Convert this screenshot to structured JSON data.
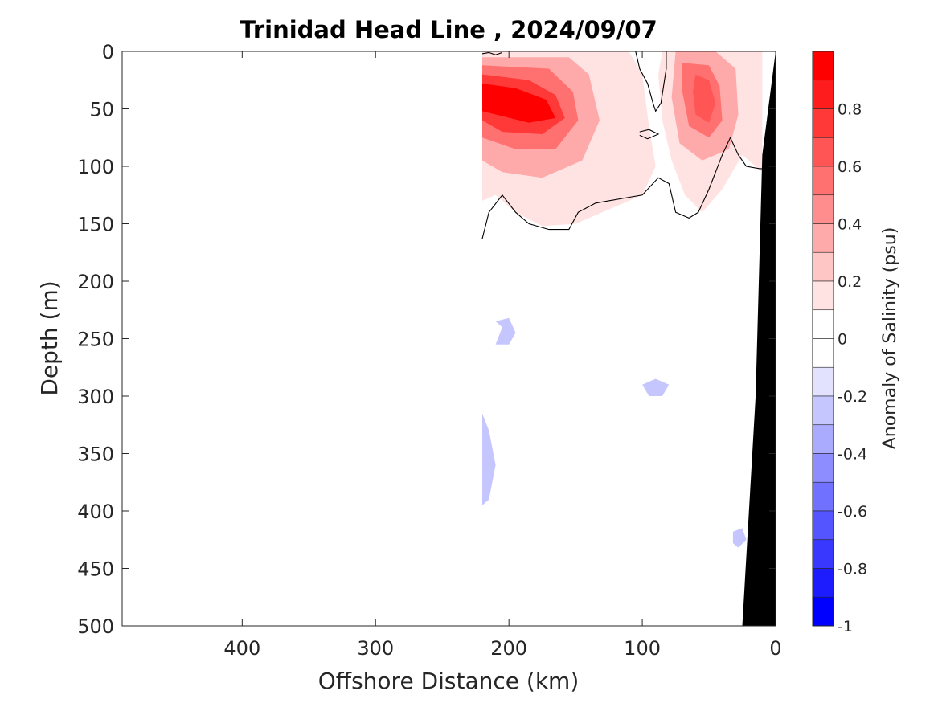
{
  "chart_data": {
    "type": "contour",
    "title": "Trinidad Head Line , 2024/09/07",
    "xlabel": "Offshore Distance (km)",
    "ylabel": "Depth (m)",
    "colorbar_label": "Anomaly of Salinity (psu)",
    "xlim": [
      490,
      0
    ],
    "ylim": [
      500,
      0
    ],
    "x_reversed": true,
    "y_reversed": true,
    "x_ticks": [
      400,
      300,
      200,
      100,
      0
    ],
    "x_tick_labels": [
      "400",
      "300",
      "200",
      "100",
      "0"
    ],
    "y_ticks": [
      0,
      50,
      100,
      150,
      200,
      250,
      300,
      350,
      400,
      450,
      500
    ],
    "y_tick_labels": [
      "0",
      "50",
      "100",
      "150",
      "200",
      "250",
      "300",
      "350",
      "400",
      "450",
      "500"
    ],
    "colorbar": {
      "range": [
        -1,
        1
      ],
      "ticks": [
        -1,
        -0.8,
        -0.6,
        -0.4,
        -0.2,
        0,
        0.2,
        0.4,
        0.6,
        0.8
      ],
      "tick_labels": [
        "-1",
        "-0.8",
        "-0.6",
        "-0.4",
        "-0.2",
        "0",
        "0.2",
        "0.4",
        "0.6",
        "0.8"
      ],
      "levels": [
        {
          "min": 0.9,
          "max": 1.0,
          "color": "#ff0000"
        },
        {
          "min": 0.8,
          "max": 0.9,
          "color": "#ff1c1c"
        },
        {
          "min": 0.7,
          "max": 0.8,
          "color": "#ff3838"
        },
        {
          "min": 0.6,
          "max": 0.7,
          "color": "#ff5555"
        },
        {
          "min": 0.5,
          "max": 0.6,
          "color": "#ff7171"
        },
        {
          "min": 0.4,
          "max": 0.5,
          "color": "#ff8d8d"
        },
        {
          "min": 0.3,
          "max": 0.4,
          "color": "#ffaaaa"
        },
        {
          "min": 0.2,
          "max": 0.3,
          "color": "#ffc6c6"
        },
        {
          "min": 0.1,
          "max": 0.2,
          "color": "#ffe2e2"
        },
        {
          "min": 0.0,
          "max": 0.1,
          "color": "#ffffff"
        },
        {
          "min": -0.1,
          "max": 0.0,
          "color": "#ffffff"
        },
        {
          "min": -0.2,
          "max": -0.1,
          "color": "#e2e2ff"
        },
        {
          "min": -0.3,
          "max": -0.2,
          "color": "#c6c6ff"
        },
        {
          "min": -0.4,
          "max": -0.3,
          "color": "#aaaaff"
        },
        {
          "min": -0.5,
          "max": -0.4,
          "color": "#8d8dff"
        },
        {
          "min": -0.6,
          "max": -0.5,
          "color": "#7171ff"
        },
        {
          "min": -0.7,
          "max": -0.6,
          "color": "#5555ff"
        },
        {
          "min": -0.8,
          "max": -0.7,
          "color": "#3838ff"
        },
        {
          "min": -0.9,
          "max": -0.8,
          "color": "#1c1cff"
        },
        {
          "min": -1.0,
          "max": -0.9,
          "color": "#0000ff"
        }
      ]
    },
    "data_extent_km": [
      220,
      0
    ],
    "regions": [
      {
        "name": "negative-anomaly-background",
        "level": -0.1,
        "points": [
          [
            220,
            145
          ],
          [
            190,
            130
          ],
          [
            160,
            135
          ],
          [
            120,
            130
          ],
          [
            80,
            115
          ],
          [
            50,
            140
          ],
          [
            30,
            125
          ],
          [
            10,
            118
          ],
          [
            10,
            500
          ],
          [
            220,
            500
          ]
        ]
      },
      {
        "name": "near-zero-deep-column",
        "level": 0,
        "points": [
          [
            160,
            255
          ],
          [
            150,
            258
          ],
          [
            148,
            300
          ],
          [
            150,
            360
          ],
          [
            148,
            420
          ],
          [
            150,
            460
          ],
          [
            155,
            485
          ],
          [
            175,
            490
          ],
          [
            185,
            480
          ],
          [
            190,
            430
          ],
          [
            188,
            360
          ],
          [
            185,
            310
          ],
          [
            170,
            265
          ]
        ]
      },
      {
        "name": "positive-anomaly-upper-west",
        "level": 0.1,
        "points": [
          [
            220,
            0
          ],
          [
            110,
            0
          ],
          [
            100,
            20
          ],
          [
            95,
            65
          ],
          [
            90,
            100
          ],
          [
            100,
            125
          ],
          [
            120,
            135
          ],
          [
            150,
            150
          ],
          [
            175,
            152
          ],
          [
            195,
            140
          ],
          [
            210,
            125
          ],
          [
            220,
            130
          ]
        ]
      },
      {
        "name": "positive-anomaly-upper-east",
        "level": 0.1,
        "points": [
          [
            85,
            0
          ],
          [
            10,
            0
          ],
          [
            10,
            105
          ],
          [
            25,
            90
          ],
          [
            40,
            120
          ],
          [
            55,
            140
          ],
          [
            68,
            125
          ],
          [
            78,
            95
          ],
          [
            85,
            60
          ],
          [
            88,
            20
          ]
        ]
      },
      {
        "name": "salty-core-west-1",
        "level": 0.3,
        "points": [
          [
            220,
            5
          ],
          [
            155,
            5
          ],
          [
            140,
            20
          ],
          [
            132,
            60
          ],
          [
            145,
            95
          ],
          [
            175,
            110
          ],
          [
            205,
            105
          ],
          [
            220,
            95
          ]
        ]
      },
      {
        "name": "salty-core-west-2",
        "level": 0.5,
        "points": [
          [
            220,
            12
          ],
          [
            170,
            15
          ],
          [
            152,
            35
          ],
          [
            148,
            60
          ],
          [
            165,
            85
          ],
          [
            195,
            85
          ],
          [
            220,
            75
          ]
        ]
      },
      {
        "name": "salty-core-west-3",
        "level": 0.7,
        "points": [
          [
            220,
            20
          ],
          [
            185,
            25
          ],
          [
            165,
            38
          ],
          [
            158,
            58
          ],
          [
            175,
            72
          ],
          [
            205,
            70
          ],
          [
            220,
            60
          ]
        ]
      },
      {
        "name": "salty-core-west-4",
        "level": 0.9,
        "points": [
          [
            220,
            28
          ],
          [
            195,
            32
          ],
          [
            172,
            42
          ],
          [
            165,
            58
          ],
          [
            185,
            62
          ],
          [
            220,
            52
          ]
        ]
      },
      {
        "name": "salty-core-east-1",
        "level": 0.3,
        "points": [
          [
            75,
            0
          ],
          [
            45,
            0
          ],
          [
            30,
            15
          ],
          [
            28,
            55
          ],
          [
            35,
            85
          ],
          [
            55,
            95
          ],
          [
            72,
            80
          ],
          [
            78,
            40
          ]
        ]
      },
      {
        "name": "salty-core-east-2",
        "level": 0.5,
        "points": [
          [
            70,
            10
          ],
          [
            50,
            12
          ],
          [
            42,
            30
          ],
          [
            40,
            60
          ],
          [
            50,
            75
          ],
          [
            65,
            65
          ],
          [
            70,
            35
          ]
        ]
      },
      {
        "name": "salty-core-east-3",
        "level": 0.6,
        "points": [
          [
            60,
            20
          ],
          [
            50,
            25
          ],
          [
            45,
            45
          ],
          [
            50,
            62
          ],
          [
            60,
            55
          ],
          [
            62,
            35
          ]
        ]
      },
      {
        "name": "fresh-patch-1",
        "level": -0.3,
        "points": [
          [
            210,
            235
          ],
          [
            205,
            240
          ],
          [
            210,
            255
          ],
          [
            200,
            255
          ],
          [
            195,
            245
          ],
          [
            200,
            232
          ]
        ]
      },
      {
        "name": "fresh-patch-2",
        "level": -0.3,
        "points": [
          [
            220,
            315
          ],
          [
            215,
            330
          ],
          [
            210,
            360
          ],
          [
            215,
            390
          ],
          [
            220,
            395
          ]
        ]
      },
      {
        "name": "fresh-patch-3",
        "level": -0.3,
        "points": [
          [
            100,
            290
          ],
          [
            90,
            285
          ],
          [
            80,
            290
          ],
          [
            85,
            300
          ],
          [
            95,
            300
          ]
        ]
      },
      {
        "name": "fresh-patch-4",
        "level": -0.3,
        "points": [
          [
            32,
            418
          ],
          [
            25,
            415
          ],
          [
            22,
            425
          ],
          [
            28,
            432
          ],
          [
            32,
            428
          ]
        ]
      }
    ],
    "zero_contour_lines": [
      {
        "name": "zero-contour-main",
        "points": [
          [
            220,
            163
          ],
          [
            215,
            140
          ],
          [
            205,
            125
          ],
          [
            195,
            140
          ],
          [
            185,
            150
          ],
          [
            170,
            155
          ],
          [
            155,
            155
          ],
          [
            148,
            140
          ],
          [
            135,
            132
          ],
          [
            115,
            128
          ],
          [
            100,
            125
          ],
          [
            88,
            110
          ],
          [
            80,
            115
          ],
          [
            75,
            140
          ],
          [
            65,
            145
          ],
          [
            58,
            140
          ],
          [
            50,
            120
          ],
          [
            40,
            90
          ],
          [
            34,
            75
          ],
          [
            28,
            90
          ],
          [
            22,
            100
          ],
          [
            12,
            102
          ],
          [
            10,
            102
          ]
        ]
      },
      {
        "name": "zero-contour-tongue",
        "points": [
          [
            105,
            0
          ],
          [
            102,
            15
          ],
          [
            96,
            28
          ],
          [
            92,
            45
          ],
          [
            90,
            52
          ],
          [
            86,
            45
          ],
          [
            84,
            30
          ],
          [
            82,
            15
          ],
          [
            82,
            0
          ]
        ]
      },
      {
        "name": "zero-contour-island",
        "points": [
          [
            102,
            70
          ],
          [
            95,
            68
          ],
          [
            88,
            72
          ],
          [
            96,
            76
          ],
          [
            102,
            73
          ]
        ]
      },
      {
        "name": "zero-contour-surface",
        "points": [
          [
            220,
            2
          ],
          [
            215,
            1
          ],
          [
            210,
            3
          ],
          [
            205,
            1
          ]
        ]
      }
    ],
    "bathymetry": {
      "name": "seafloor",
      "color": "#000000",
      "points": [
        [
          0,
          0
        ],
        [
          10,
          90
        ],
        [
          15,
          300
        ],
        [
          25,
          500
        ],
        [
          0,
          500
        ]
      ]
    }
  }
}
